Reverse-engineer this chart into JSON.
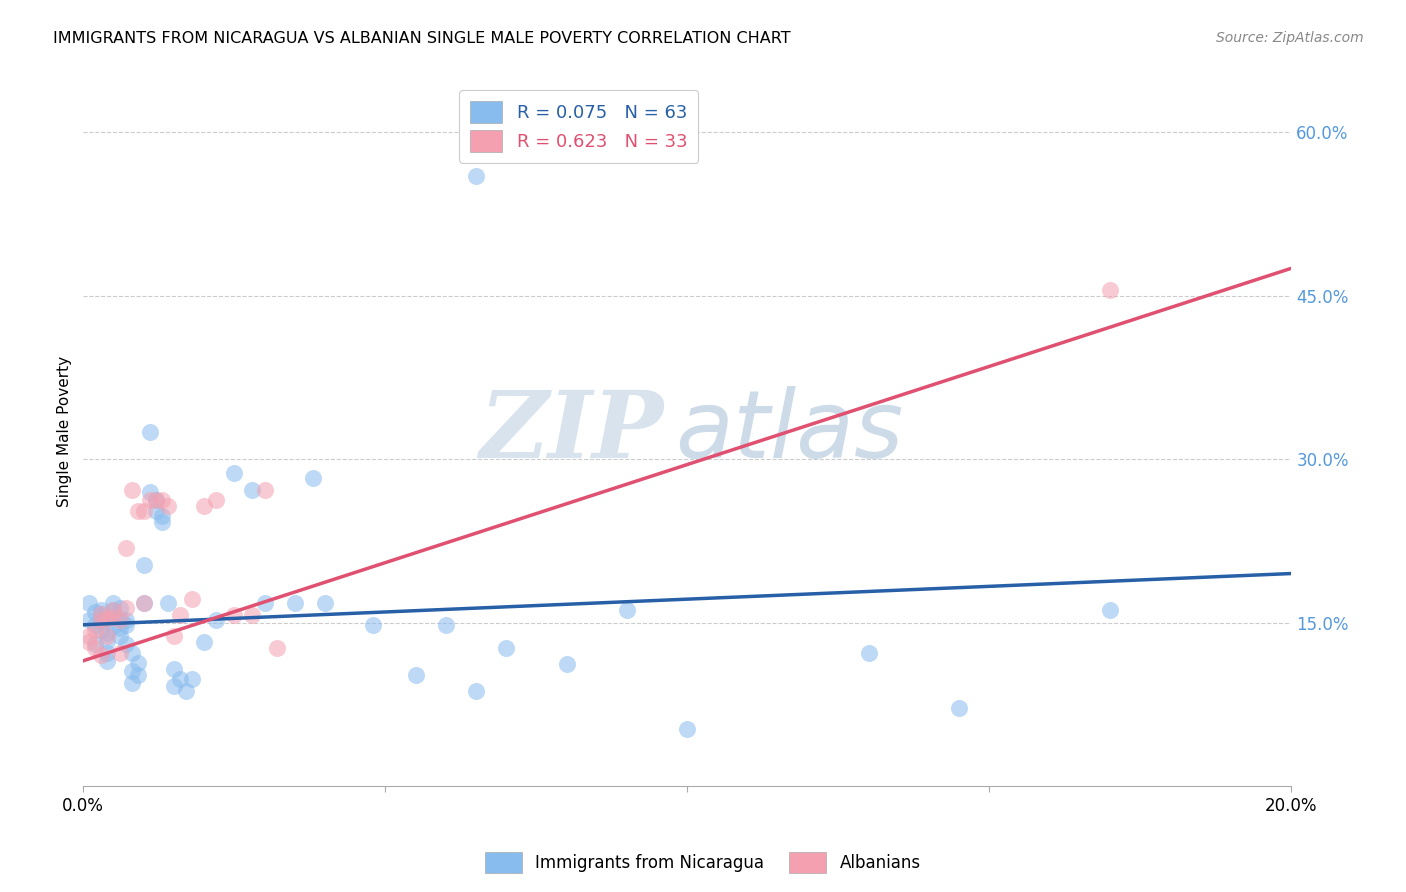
{
  "title": "IMMIGRANTS FROM NICARAGUA VS ALBANIAN SINGLE MALE POVERTY CORRELATION CHART",
  "source": "Source: ZipAtlas.com",
  "ylabel": "Single Male Poverty",
  "xlim": [
    0.0,
    0.2
  ],
  "ylim": [
    0.0,
    0.65
  ],
  "xtick_positions": [
    0.0,
    0.05,
    0.1,
    0.15,
    0.2
  ],
  "xticklabels": [
    "0.0%",
    "",
    "",
    "",
    "20.0%"
  ],
  "ytick_positions": [
    0.0,
    0.15,
    0.3,
    0.45,
    0.6
  ],
  "yticklabels_right": [
    "",
    "15.0%",
    "30.0%",
    "45.0%",
    "60.0%"
  ],
  "color_blue": "#88bbee",
  "color_pink": "#f4a0b0",
  "line_blue": "#2860a8",
  "line_pink": "#e05070",
  "watermark_zip": "ZIP",
  "watermark_atlas": "atlas",
  "legend_label1": "Immigrants from Nicaragua",
  "legend_label2": "Albanians",
  "blue_line_x": [
    0.0,
    0.2
  ],
  "blue_line_y": [
    0.148,
    0.195
  ],
  "pink_line_x": [
    0.0,
    0.2
  ],
  "pink_line_y": [
    0.115,
    0.475
  ],
  "nicaragua_x": [
    0.001,
    0.001,
    0.002,
    0.002,
    0.002,
    0.003,
    0.003,
    0.003,
    0.003,
    0.004,
    0.004,
    0.004,
    0.004,
    0.005,
    0.005,
    0.005,
    0.005,
    0.006,
    0.006,
    0.006,
    0.006,
    0.007,
    0.007,
    0.007,
    0.008,
    0.008,
    0.008,
    0.009,
    0.009,
    0.01,
    0.01,
    0.011,
    0.011,
    0.012,
    0.012,
    0.013,
    0.013,
    0.014,
    0.015,
    0.015,
    0.016,
    0.017,
    0.018,
    0.02,
    0.022,
    0.025,
    0.028,
    0.03,
    0.035,
    0.038,
    0.04,
    0.048,
    0.055,
    0.06,
    0.065,
    0.07,
    0.08,
    0.09,
    0.1,
    0.13,
    0.145,
    0.17,
    0.065
  ],
  "nicaragua_y": [
    0.168,
    0.152,
    0.148,
    0.16,
    0.13,
    0.162,
    0.158,
    0.152,
    0.143,
    0.14,
    0.133,
    0.122,
    0.115,
    0.162,
    0.168,
    0.155,
    0.147,
    0.138,
    0.163,
    0.153,
    0.145,
    0.152,
    0.148,
    0.13,
    0.122,
    0.106,
    0.095,
    0.102,
    0.113,
    0.168,
    0.203,
    0.27,
    0.325,
    0.262,
    0.252,
    0.242,
    0.248,
    0.168,
    0.107,
    0.092,
    0.098,
    0.087,
    0.098,
    0.132,
    0.152,
    0.287,
    0.272,
    0.168,
    0.168,
    0.283,
    0.168,
    0.148,
    0.102,
    0.148,
    0.087,
    0.127,
    0.112,
    0.162,
    0.052,
    0.122,
    0.072,
    0.162,
    0.56
  ],
  "albanian_x": [
    0.001,
    0.001,
    0.002,
    0.002,
    0.003,
    0.003,
    0.003,
    0.004,
    0.004,
    0.005,
    0.005,
    0.006,
    0.006,
    0.007,
    0.007,
    0.008,
    0.009,
    0.01,
    0.01,
    0.011,
    0.012,
    0.013,
    0.014,
    0.015,
    0.016,
    0.018,
    0.02,
    0.022,
    0.025,
    0.028,
    0.03,
    0.032,
    0.17
  ],
  "albanian_y": [
    0.138,
    0.132,
    0.143,
    0.127,
    0.158,
    0.152,
    0.12,
    0.153,
    0.138,
    0.162,
    0.155,
    0.122,
    0.152,
    0.163,
    0.218,
    0.272,
    0.252,
    0.168,
    0.252,
    0.262,
    0.262,
    0.262,
    0.257,
    0.138,
    0.157,
    0.172,
    0.257,
    0.262,
    0.157,
    0.157,
    0.272,
    0.127,
    0.455
  ]
}
